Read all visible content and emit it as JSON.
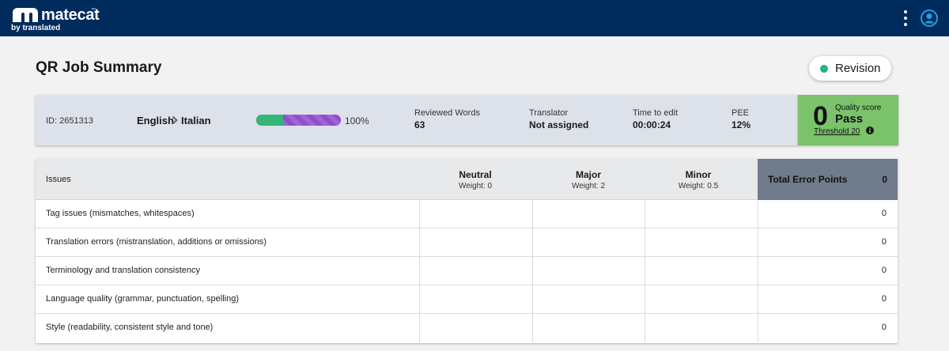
{
  "app": {
    "logo_text": "matecat",
    "logo_tm": "™",
    "logo_sub": "by translated"
  },
  "header": {
    "title": "QR Job Summary",
    "revision_label": "Revision",
    "revision_status_color": "#24b47e"
  },
  "job": {
    "id_label": "ID: 2651313",
    "source_lang": "English",
    "target_lang": "Italian",
    "progress_percent": 100,
    "progress_green_fraction": 0.32,
    "progress_label": "100%",
    "reviewed_words_label": "Reviewed Words",
    "reviewed_words": "63",
    "translator_label": "Translator",
    "translator": "Not assigned",
    "time_label": "Time to edit",
    "time": "00:00:24",
    "pee_label": "PEE",
    "pee": "12%"
  },
  "quality": {
    "score": "0",
    "label": "Quality score",
    "result": "Pass",
    "threshold": "Threshold 20",
    "info_icon": "i",
    "color": "#7ac36b"
  },
  "table": {
    "issues_header": "Issues",
    "columns": [
      {
        "name": "Neutral",
        "weight": "Weight: 0"
      },
      {
        "name": "Major",
        "weight": "Weight: 2"
      },
      {
        "name": "Minor",
        "weight": "Weight: 0.5"
      }
    ],
    "total_label": "Total Error Points",
    "total_value": "0",
    "rows": [
      {
        "issue": "Tag issues (mismatches, whitespaces)",
        "total": "0"
      },
      {
        "issue": "Translation errors (mistranslation, additions or omissions)",
        "total": "0"
      },
      {
        "issue": "Terminology and translation consistency",
        "total": "0"
      },
      {
        "issue": "Language quality (grammar, punctuation, spelling)",
        "total": "0"
      },
      {
        "issue": "Style (readability, consistent style and tone)",
        "total": "0"
      }
    ]
  },
  "icons": [
    "matecat-logo-icon",
    "kebab-menu-icon",
    "user-account-icon",
    "chevron-right-icon",
    "info-icon"
  ]
}
